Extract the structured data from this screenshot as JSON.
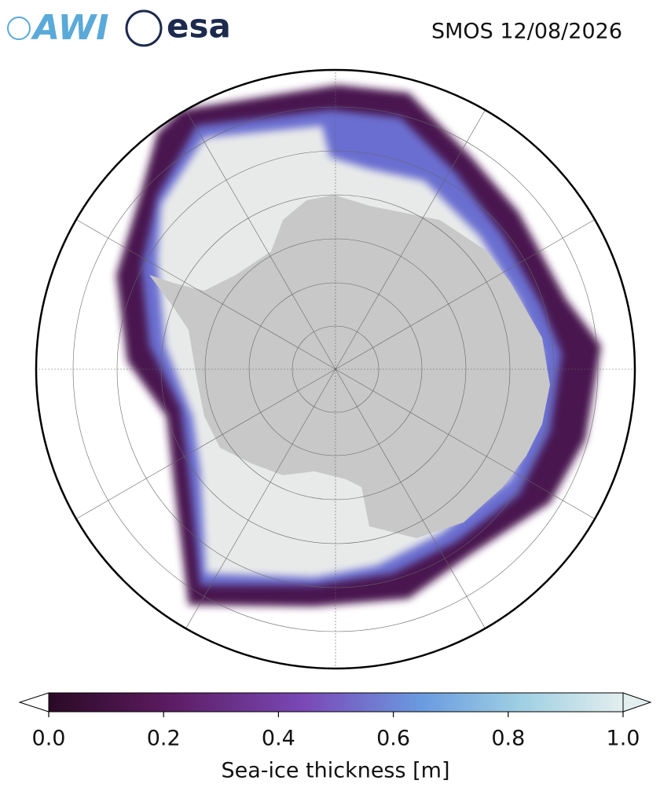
{
  "header": {
    "logos": [
      "AWI",
      "esa"
    ],
    "title": "SMOS 12/08/2026"
  },
  "colorbar": {
    "label": "Sea-ice thickness [m]",
    "lim": [
      0,
      1
    ],
    "ticks": [
      {
        "value": 0,
        "label": "0.0"
      },
      {
        "value": 0.2,
        "label": "0.2"
      },
      {
        "value": 0.4,
        "label": "0.4"
      },
      {
        "value": 0.6,
        "label": "0.6"
      },
      {
        "value": 0.8,
        "label": "0.8"
      },
      {
        "value": 1,
        "label": "1.0"
      }
    ]
  }
}
